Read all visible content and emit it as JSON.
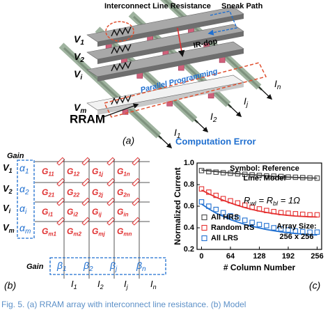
{
  "panel_a": {
    "interconnect": "Interconnect Line Resistance",
    "sneak": "Sneak Path",
    "ir": "IR-dop",
    "parallel": "Parallel Programming",
    "rram": "RRAM",
    "tag": "(a)",
    "error": "Computation Error",
    "voltages": [
      {
        "base": "V",
        "sub": "1"
      },
      {
        "base": "V",
        "sub": "2"
      },
      {
        "base": "V",
        "sub": "i"
      },
      {
        "base": "V",
        "sub": "m"
      }
    ],
    "currents": [
      {
        "base": "I",
        "sub": "1"
      },
      {
        "base": "I",
        "sub": "2"
      },
      {
        "base": "I",
        "sub": "j"
      },
      {
        "base": "I",
        "sub": "n"
      }
    ]
  },
  "panel_b": {
    "gain_row": "Gain",
    "gain_col": "Gain",
    "tag": "(b)",
    "voltages": [
      {
        "base": "V",
        "sub": "1"
      },
      {
        "base": "V",
        "sub": "2"
      },
      {
        "base": "V",
        "sub": "i"
      },
      {
        "base": "V",
        "sub": "m"
      }
    ],
    "alphas": [
      {
        "base": "α",
        "sub": "1"
      },
      {
        "base": "α",
        "sub": "2"
      },
      {
        "base": "α",
        "sub": "i"
      },
      {
        "base": "α",
        "sub": "m"
      }
    ],
    "betas": [
      {
        "base": "β",
        "sub": "1"
      },
      {
        "base": "β",
        "sub": "2"
      },
      {
        "base": "β",
        "sub": "j"
      },
      {
        "base": "β",
        "sub": "n"
      }
    ],
    "currents": [
      {
        "base": "I",
        "sub": "1"
      },
      {
        "base": "I",
        "sub": "2"
      },
      {
        "base": "I",
        "sub": "j"
      },
      {
        "base": "I",
        "sub": "n"
      }
    ],
    "conductances": [
      [
        {
          "base": "G",
          "sub": "11"
        },
        {
          "base": "G",
          "sub": "12"
        },
        {
          "base": "G",
          "sub": "1j"
        },
        {
          "base": "G",
          "sub": "1n"
        }
      ],
      [
        {
          "base": "G",
          "sub": "21"
        },
        {
          "base": "G",
          "sub": "22"
        },
        {
          "base": "G",
          "sub": "2j"
        },
        {
          "base": "G",
          "sub": "2n"
        }
      ],
      [
        {
          "base": "G",
          "sub": "i1"
        },
        {
          "base": "G",
          "sub": "i2"
        },
        {
          "base": "G",
          "sub": "ij"
        },
        {
          "base": "G",
          "sub": "in"
        }
      ],
      [
        {
          "base": "G",
          "sub": "m1"
        },
        {
          "base": "G",
          "sub": "m2"
        },
        {
          "base": "G",
          "sub": "mj"
        },
        {
          "base": "G",
          "sub": "mn"
        }
      ]
    ]
  },
  "chart_data": {
    "type": "line",
    "tag": "(c)",
    "y_label": "Normalized Current",
    "x_label": "# Column Number",
    "annotations": [
      "Symbol: Reference",
      "Line: Model",
      "Array Size:",
      "256 x 256"
    ],
    "equation": [
      {
        "text": "R"
      },
      {
        "sub": "wl"
      },
      {
        "text": " = R"
      },
      {
        "sub": "bl"
      },
      {
        "text": " = 1Ω"
      }
    ],
    "legend": "lower left",
    "x": [
      0,
      16,
      32,
      48,
      64,
      80,
      96,
      112,
      128,
      144,
      160,
      176,
      192,
      208,
      224,
      240,
      256
    ],
    "xlim": [
      -10,
      266
    ],
    "xticks": [
      0,
      64,
      128,
      192,
      256
    ],
    "ylim": [
      0.2,
      1.0
    ],
    "yticks": [
      0.2,
      0.4,
      0.6,
      0.8,
      {
        "value": 1,
        "label": "1.0"
      }
    ],
    "series": [
      {
        "name": "All HRS",
        "color": "#444444",
        "values": [
          0.93,
          0.92,
          0.915,
          0.91,
          0.905,
          0.9,
          0.895,
          0.89,
          0.885,
          0.88,
          0.878,
          0.875,
          0.87,
          0.868,
          0.865,
          0.862,
          0.86
        ],
        "model": [
          0.935,
          0.928,
          0.921,
          0.914,
          0.908,
          0.902,
          0.896,
          0.891,
          0.886,
          0.881,
          0.877,
          0.873,
          0.869,
          0.866,
          0.863,
          0.861,
          0.86
        ]
      },
      {
        "name": "Random RS",
        "color": "#e53030",
        "values": [
          0.76,
          0.73,
          0.7,
          0.67,
          0.65,
          0.63,
          0.61,
          0.59,
          0.575,
          0.56,
          0.55,
          0.54,
          0.535,
          0.53,
          0.525,
          0.52,
          0.52
        ],
        "model": [
          0.75,
          0.715,
          0.683,
          0.655,
          0.63,
          0.607,
          0.587,
          0.57,
          0.555,
          0.542,
          0.531,
          0.522,
          0.515,
          0.509,
          0.505,
          0.502,
          0.5
        ]
      },
      {
        "name": "All LRS",
        "color": "#1f6fd0",
        "values": [
          0.64,
          0.6,
          0.57,
          0.54,
          0.51,
          0.49,
          0.47,
          0.45,
          0.43,
          0.42,
          0.4,
          0.39,
          0.38,
          0.37,
          0.365,
          0.36,
          0.36
        ],
        "model": [
          0.62,
          0.575,
          0.537,
          0.505,
          0.477,
          0.453,
          0.432,
          0.414,
          0.398,
          0.384,
          0.372,
          0.362,
          0.354,
          0.347,
          0.341,
          0.336,
          0.333
        ]
      }
    ]
  },
  "caption": "Fig. 5. (a) RRAM array with interconnect line resistance. (b) Model"
}
